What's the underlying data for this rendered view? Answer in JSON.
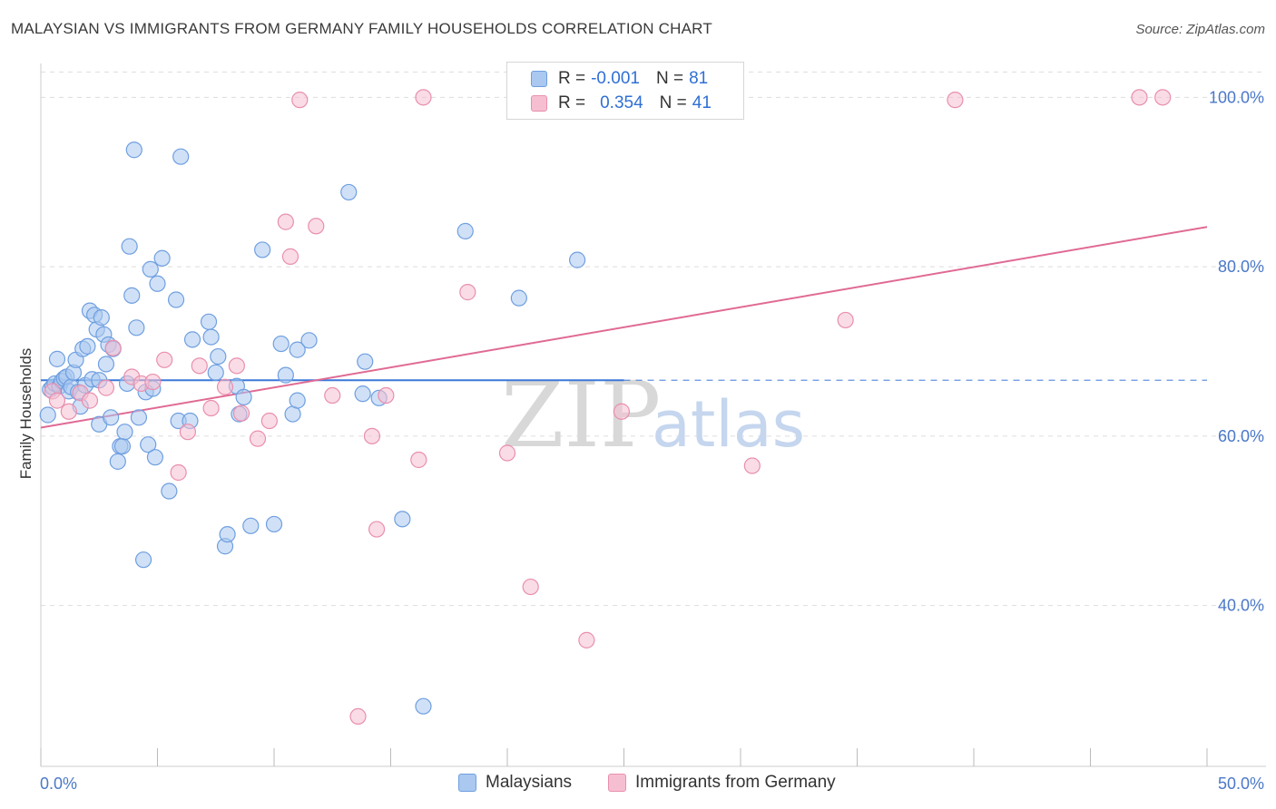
{
  "title": "MALAYSIAN VS IMMIGRANTS FROM GERMANY FAMILY HOUSEHOLDS CORRELATION CHART",
  "source": "Source: ZipAtlas.com",
  "watermark": {
    "zip": "ZIP",
    "atlas": "atlas"
  },
  "legend": {
    "rows": [
      {
        "r_label": "R =",
        "r_value": "-0.001",
        "n_label": "N =",
        "n_value": "81"
      },
      {
        "r_label": "R =",
        "r_value": "0.354",
        "n_label": "N =",
        "n_value": "41"
      }
    ]
  },
  "bottom_legend": {
    "malaysians": "Malaysians",
    "germany": "Immigrants from Germany"
  },
  "colors": {
    "blue_fill": "#aac8f0",
    "blue_stroke": "#6f9fe0",
    "blue_line": "#3c78d8",
    "pink_fill": "#f6bfd1",
    "pink_stroke": "#e98fae",
    "pink_line": "#e06a94",
    "axis_text": "#4a78c9",
    "grid": "#dddddd"
  },
  "chart_data": {
    "type": "scatter",
    "title": "MALAYSIAN VS IMMIGRANTS FROM GERMANY FAMILY HOUSEHOLDS CORRELATION CHART",
    "xlabel": "",
    "ylabel": "Family Households",
    "xlim": [
      0,
      50
    ],
    "ylim": [
      21,
      104
    ],
    "x_tick_labels": [
      "0.0%",
      "50.0%"
    ],
    "y_ticks": [
      40,
      60,
      80,
      100
    ],
    "y_tick_labels": [
      "40.0%",
      "60.0%",
      "80.0%",
      "100.0%"
    ],
    "grid": "horizontal dashed",
    "legend_position": "top-center",
    "series": [
      {
        "name": "Malaysians",
        "trend": {
          "x0": 0,
          "y0": 66.6,
          "x1": 25,
          "y1": 66.6,
          "dashed_to": 50
        },
        "points": [
          [
            0.3,
            62.5
          ],
          [
            0.4,
            65.5
          ],
          [
            0.5,
            65.8
          ],
          [
            0.6,
            66.2
          ],
          [
            0.7,
            69.1
          ],
          [
            0.8,
            65.9
          ],
          [
            0.9,
            66.5
          ],
          [
            1.0,
            66.8
          ],
          [
            1.1,
            67.0
          ],
          [
            1.2,
            65.3
          ],
          [
            1.3,
            65.8
          ],
          [
            1.4,
            67.5
          ],
          [
            1.5,
            69.0
          ],
          [
            1.6,
            65.2
          ],
          [
            1.7,
            63.5
          ],
          [
            1.8,
            70.3
          ],
          [
            1.9,
            66.0
          ],
          [
            2.0,
            70.6
          ],
          [
            2.1,
            74.8
          ],
          [
            2.2,
            66.7
          ],
          [
            2.3,
            74.3
          ],
          [
            2.4,
            72.6
          ],
          [
            2.5,
            61.4
          ],
          [
            2.6,
            74.0
          ],
          [
            2.7,
            72.0
          ],
          [
            2.8,
            68.5
          ],
          [
            2.9,
            70.8
          ],
          [
            3.0,
            62.2
          ],
          [
            3.1,
            70.3
          ],
          [
            3.3,
            57.0
          ],
          [
            3.4,
            58.8
          ],
          [
            3.5,
            58.8
          ],
          [
            3.6,
            60.5
          ],
          [
            3.7,
            66.2
          ],
          [
            3.8,
            82.4
          ],
          [
            3.9,
            76.6
          ],
          [
            4.0,
            93.8
          ],
          [
            4.1,
            72.8
          ],
          [
            4.2,
            62.2
          ],
          [
            4.4,
            45.4
          ],
          [
            4.5,
            65.2
          ],
          [
            4.6,
            59.0
          ],
          [
            4.7,
            79.7
          ],
          [
            4.8,
            65.6
          ],
          [
            4.9,
            57.5
          ],
          [
            5.0,
            78.0
          ],
          [
            5.2,
            81.0
          ],
          [
            5.5,
            53.5
          ],
          [
            5.8,
            76.1
          ],
          [
            5.9,
            61.8
          ],
          [
            6.0,
            93.0
          ],
          [
            6.4,
            61.8
          ],
          [
            6.5,
            71.4
          ],
          [
            7.2,
            73.5
          ],
          [
            7.3,
            71.7
          ],
          [
            7.5,
            67.5
          ],
          [
            7.6,
            69.4
          ],
          [
            7.9,
            47.0
          ],
          [
            8.0,
            48.4
          ],
          [
            8.4,
            65.9
          ],
          [
            8.5,
            62.6
          ],
          [
            8.7,
            64.6
          ],
          [
            9.0,
            49.4
          ],
          [
            9.5,
            82.0
          ],
          [
            10.0,
            49.6
          ],
          [
            10.3,
            70.9
          ],
          [
            10.5,
            67.2
          ],
          [
            10.8,
            62.6
          ],
          [
            11.0,
            64.2
          ],
          [
            11.0,
            70.2
          ],
          [
            11.5,
            71.3
          ],
          [
            13.2,
            88.8
          ],
          [
            13.8,
            65.0
          ],
          [
            13.9,
            68.8
          ],
          [
            14.5,
            64.5
          ],
          [
            15.5,
            50.2
          ],
          [
            16.4,
            28.1
          ],
          [
            18.2,
            84.2
          ],
          [
            20.5,
            76.3
          ],
          [
            23.0,
            80.8
          ],
          [
            2.5,
            66.6
          ]
        ]
      },
      {
        "name": "Immigrants from Germany",
        "trend": {
          "x0": 0,
          "y0": 61.0,
          "x1": 50,
          "y1": 84.7
        },
        "points": [
          [
            0.5,
            65.3
          ],
          [
            0.7,
            64.2
          ],
          [
            1.2,
            62.9
          ],
          [
            1.7,
            65.1
          ],
          [
            2.1,
            64.2
          ],
          [
            2.8,
            65.7
          ],
          [
            3.1,
            70.4
          ],
          [
            3.9,
            67.0
          ],
          [
            4.3,
            66.2
          ],
          [
            4.8,
            66.4
          ],
          [
            5.3,
            69.0
          ],
          [
            5.9,
            55.7
          ],
          [
            6.3,
            60.5
          ],
          [
            6.8,
            68.3
          ],
          [
            7.3,
            63.3
          ],
          [
            7.9,
            65.8
          ],
          [
            8.4,
            68.3
          ],
          [
            8.6,
            62.7
          ],
          [
            9.3,
            59.7
          ],
          [
            9.8,
            61.8
          ],
          [
            10.5,
            85.3
          ],
          [
            10.7,
            81.2
          ],
          [
            11.1,
            99.7
          ],
          [
            11.8,
            84.8
          ],
          [
            12.5,
            64.8
          ],
          [
            13.6,
            26.9
          ],
          [
            14.2,
            60.0
          ],
          [
            14.4,
            49.0
          ],
          [
            14.8,
            64.8
          ],
          [
            16.2,
            57.2
          ],
          [
            16.4,
            100.0
          ],
          [
            18.3,
            77.0
          ],
          [
            20.0,
            58.0
          ],
          [
            21.0,
            42.2
          ],
          [
            23.4,
            35.9
          ],
          [
            24.9,
            62.9
          ],
          [
            30.5,
            56.5
          ],
          [
            34.5,
            73.7
          ],
          [
            39.2,
            99.7
          ],
          [
            47.1,
            100.0
          ],
          [
            48.1,
            100.0
          ]
        ]
      }
    ]
  }
}
